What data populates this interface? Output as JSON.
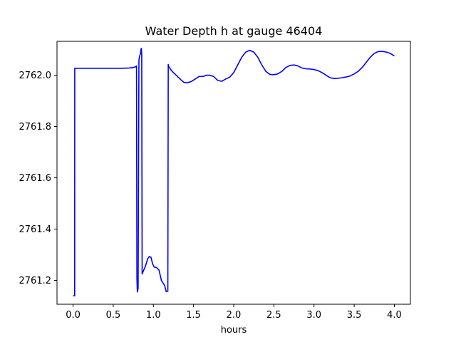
{
  "chart_data": {
    "type": "line",
    "title": "Water Depth h at gauge 46404",
    "xlabel": "hours",
    "ylabel": "",
    "xlim": [
      -0.2,
      4.2
    ],
    "ylim": [
      2761.107,
      2762.132
    ],
    "xticks": [
      0.0,
      0.5,
      1.0,
      1.5,
      2.0,
      2.5,
      3.0,
      3.5,
      4.0
    ],
    "xtick_labels": [
      "0.0",
      "0.5",
      "1.0",
      "1.5",
      "2.0",
      "2.5",
      "3.0",
      "3.5",
      "4.0"
    ],
    "yticks": [
      2761.2,
      2761.4,
      2761.6,
      2761.8,
      2762.0
    ],
    "ytick_labels": [
      "2761.2",
      "2761.4",
      "2761.6",
      "2761.8",
      "2762.0"
    ],
    "grid": false,
    "line_color": "#0000ff",
    "series": [
      {
        "x": [
          0.0,
          0.02,
          0.021,
          0.1,
          0.3,
          0.5,
          0.6,
          0.7,
          0.75,
          0.78,
          0.79,
          0.795,
          0.8,
          0.805,
          0.81,
          0.82,
          0.83,
          0.84,
          0.845,
          0.85,
          0.855,
          0.86,
          0.88,
          0.9,
          0.93,
          0.95,
          0.97,
          0.99,
          1.01,
          1.04,
          1.07,
          1.1,
          1.12,
          1.14,
          1.16,
          1.18,
          1.185,
          1.19,
          1.22,
          1.25,
          1.3,
          1.35,
          1.38,
          1.42,
          1.47,
          1.52,
          1.57,
          1.62,
          1.66,
          1.7,
          1.75,
          1.8,
          1.85,
          1.9,
          1.95,
          2.0,
          2.05,
          2.1,
          2.15,
          2.2,
          2.25,
          2.3,
          2.35,
          2.4,
          2.45,
          2.5,
          2.55,
          2.6,
          2.65,
          2.7,
          2.75,
          2.8,
          2.85,
          2.9,
          2.95,
          3.0,
          3.05,
          3.1,
          3.15,
          3.2,
          3.25,
          3.3,
          3.35,
          3.4,
          3.45,
          3.5,
          3.55,
          3.6,
          3.65,
          3.7,
          3.75,
          3.8,
          3.85,
          3.9,
          3.95,
          4.0
        ],
        "y": [
          2761.14,
          2761.14,
          2762.027,
          2762.027,
          2762.027,
          2762.027,
          2762.027,
          2762.028,
          2762.03,
          2762.033,
          2762.036,
          2761.21,
          2761.155,
          2761.16,
          2761.17,
          2762.06,
          2762.075,
          2762.085,
          2762.098,
          2762.105,
          2762.08,
          2761.225,
          2761.24,
          2761.255,
          2761.285,
          2761.293,
          2761.29,
          2761.265,
          2761.252,
          2761.25,
          2761.24,
          2761.2,
          2761.19,
          2761.18,
          2761.156,
          2761.158,
          2762.042,
          2762.035,
          2762.02,
          2762.01,
          2761.995,
          2761.98,
          2761.972,
          2761.97,
          2761.975,
          2761.985,
          2761.995,
          2761.995,
          2762.0,
          2762.0,
          2761.995,
          2761.98,
          2761.976,
          2761.985,
          2761.992,
          2762.01,
          2762.04,
          2762.07,
          2762.09,
          2762.097,
          2762.09,
          2762.07,
          2762.04,
          2762.015,
          2762.003,
          2762.002,
          2762.005,
          2762.015,
          2762.03,
          2762.038,
          2762.04,
          2762.036,
          2762.028,
          2762.025,
          2762.024,
          2762.022,
          2762.018,
          2762.01,
          2762.0,
          2761.99,
          2761.987,
          2761.988,
          2761.99,
          2761.993,
          2761.997,
          2762.005,
          2762.015,
          2762.03,
          2762.05,
          2762.07,
          2762.085,
          2762.092,
          2762.093,
          2762.09,
          2762.085,
          2762.075
        ]
      }
    ]
  }
}
